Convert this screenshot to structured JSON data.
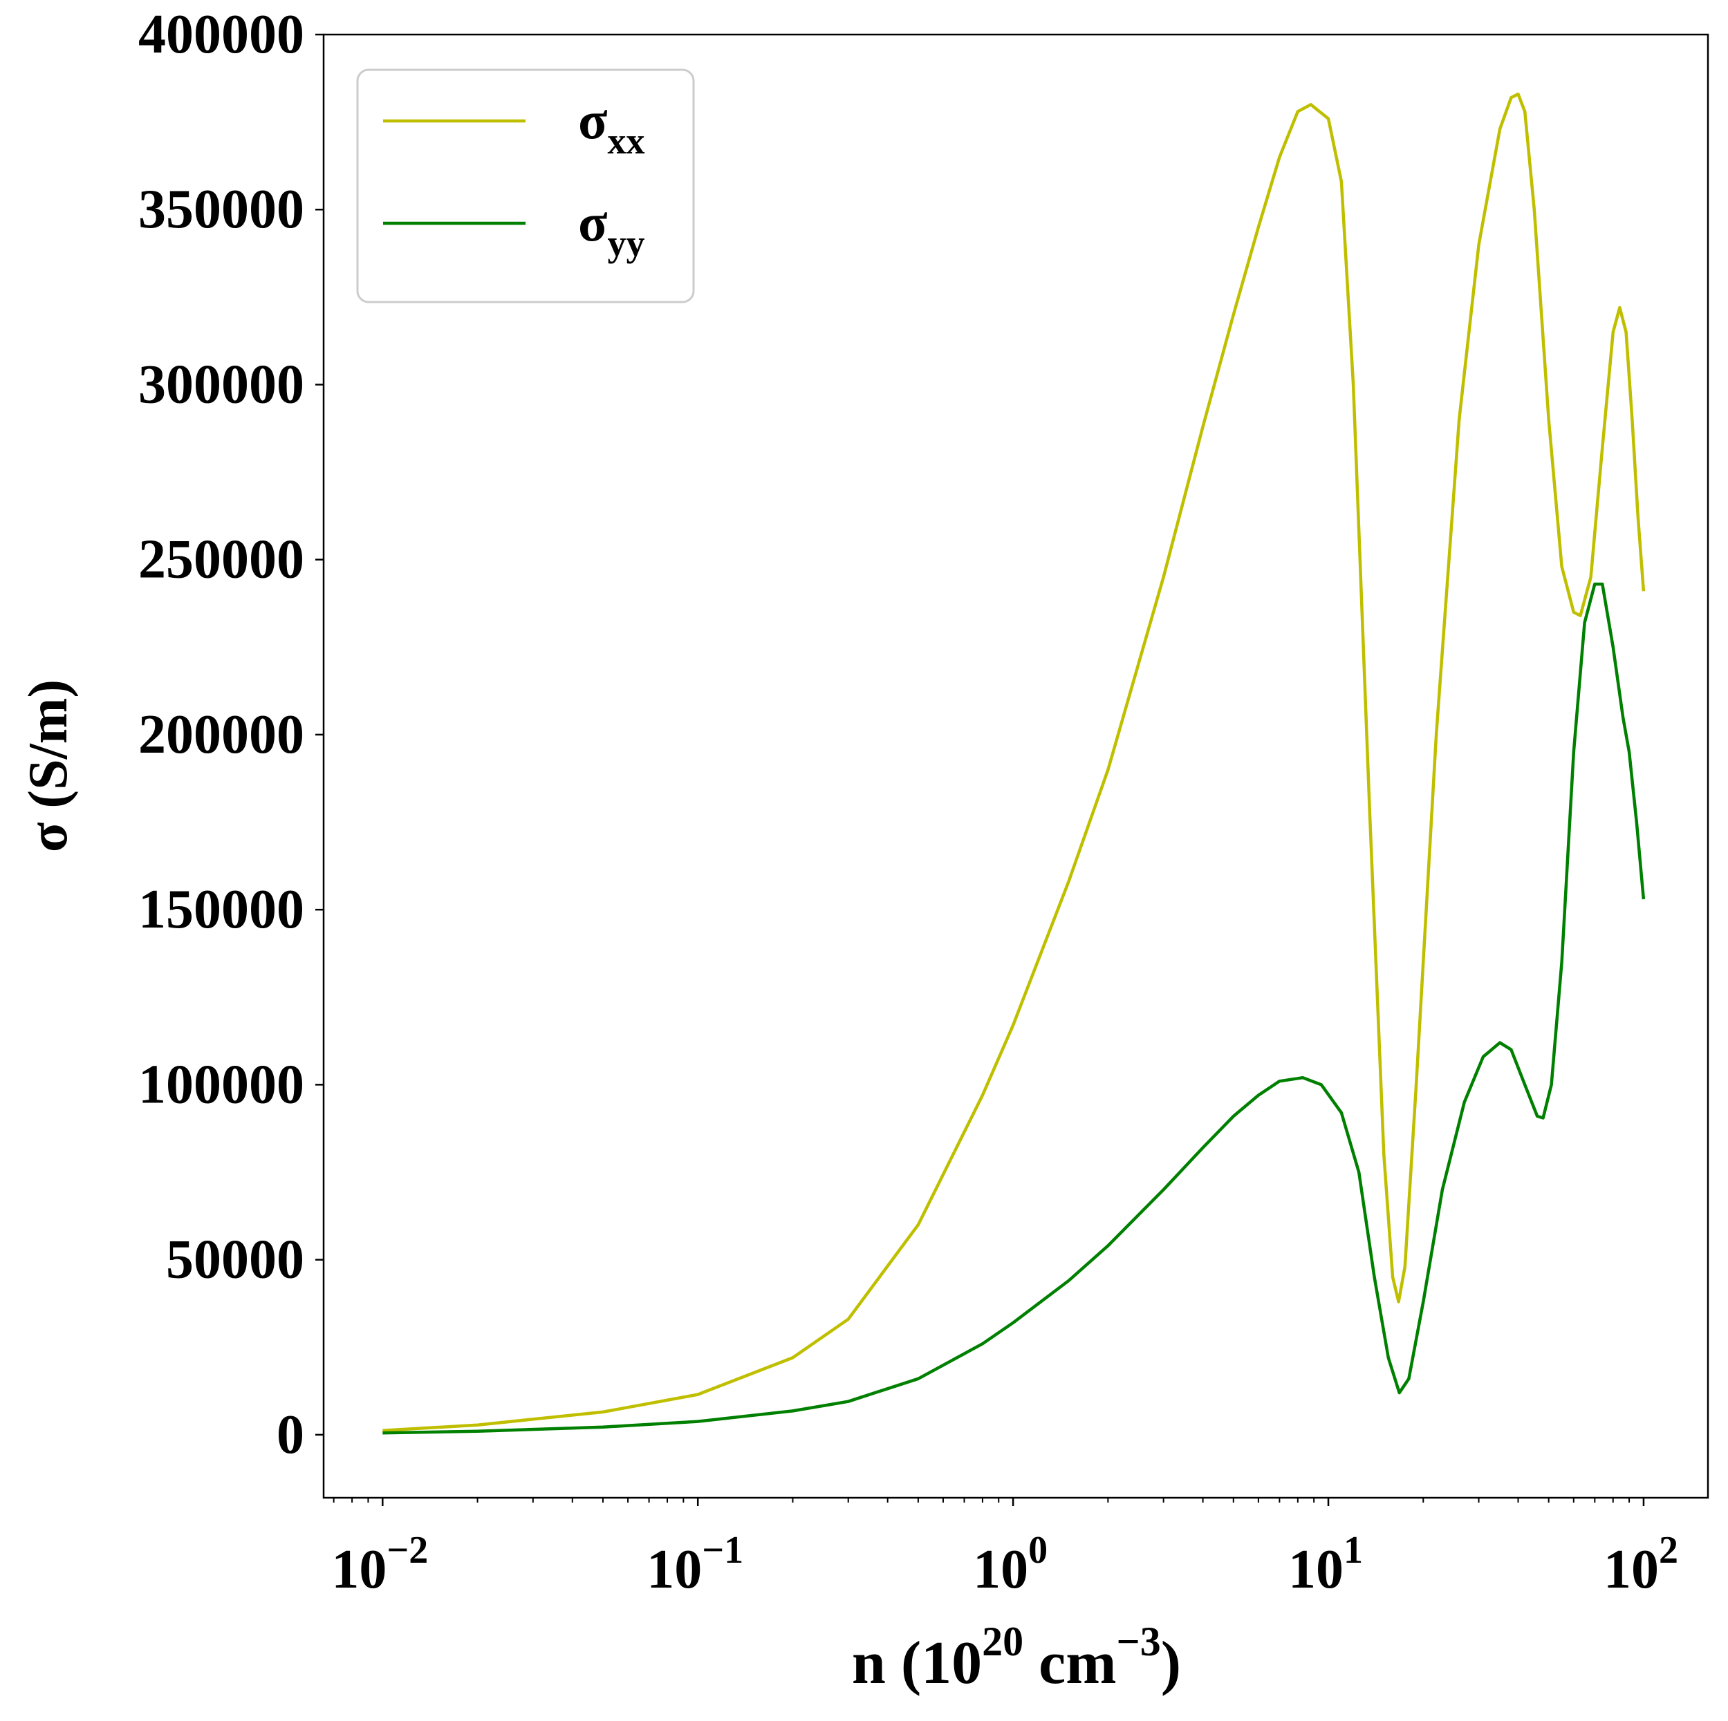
{
  "chart_data": {
    "type": "line",
    "title": "",
    "xlabel": {
      "base": "n (10",
      "sup1": "20",
      "mid": " cm",
      "sup2": "−3",
      "end": ")"
    },
    "ylabel": "σ (S/m)",
    "xscale": "log",
    "xlim": [
      0.0065,
      160
    ],
    "ylim": [
      -18000,
      400000
    ],
    "yticks": [
      0,
      50000,
      100000,
      150000,
      200000,
      250000,
      300000,
      350000,
      400000
    ],
    "xticks": [
      {
        "value": 0.01,
        "base": "10",
        "exp": "−2"
      },
      {
        "value": 0.1,
        "base": "10",
        "exp": "−1"
      },
      {
        "value": 1,
        "base": "10",
        "exp": "0"
      },
      {
        "value": 10,
        "base": "10",
        "exp": "1"
      },
      {
        "value": 100,
        "base": "10",
        "exp": "2"
      }
    ],
    "grid": false,
    "legend_position": "top-left",
    "series": [
      {
        "name": "σ",
        "subscript": "xx",
        "color": "#bfbf00",
        "points": [
          [
            0.01,
            1200
          ],
          [
            0.02,
            2800
          ],
          [
            0.05,
            6500
          ],
          [
            0.1,
            11500
          ],
          [
            0.2,
            22000
          ],
          [
            0.3,
            33000
          ],
          [
            0.5,
            60000
          ],
          [
            0.8,
            97000
          ],
          [
            1.0,
            117000
          ],
          [
            1.5,
            158000
          ],
          [
            2.0,
            190000
          ],
          [
            3.0,
            245000
          ],
          [
            4.0,
            288000
          ],
          [
            5.0,
            320000
          ],
          [
            6.0,
            345000
          ],
          [
            7.0,
            365000
          ],
          [
            8.0,
            378000
          ],
          [
            8.8,
            380000
          ],
          [
            10.0,
            376000
          ],
          [
            11.0,
            358000
          ],
          [
            12.0,
            300000
          ],
          [
            13.5,
            180000
          ],
          [
            15.0,
            80000
          ],
          [
            16.0,
            45000
          ],
          [
            16.7,
            38000
          ],
          [
            17.5,
            48000
          ],
          [
            19.0,
            100000
          ],
          [
            22.0,
            200000
          ],
          [
            26.0,
            290000
          ],
          [
            30.0,
            340000
          ],
          [
            35.0,
            373000
          ],
          [
            38.0,
            382000
          ],
          [
            40.0,
            383000
          ],
          [
            42.0,
            378000
          ],
          [
            45.0,
            350000
          ],
          [
            50.0,
            290000
          ],
          [
            55.0,
            248000
          ],
          [
            60.0,
            235000
          ],
          [
            63.0,
            234000
          ],
          [
            68.0,
            245000
          ],
          [
            74.0,
            282000
          ],
          [
            80.0,
            315000
          ],
          [
            84.0,
            322000
          ],
          [
            88.0,
            315000
          ],
          [
            92.0,
            290000
          ],
          [
            96.0,
            262000
          ],
          [
            100.0,
            241000
          ]
        ]
      },
      {
        "name": "σ",
        "subscript": "yy",
        "color": "#008000",
        "points": [
          [
            0.01,
            500
          ],
          [
            0.02,
            1000
          ],
          [
            0.05,
            2200
          ],
          [
            0.1,
            3800
          ],
          [
            0.2,
            6800
          ],
          [
            0.3,
            9500
          ],
          [
            0.5,
            16000
          ],
          [
            0.8,
            26000
          ],
          [
            1.0,
            32000
          ],
          [
            1.5,
            44000
          ],
          [
            2.0,
            54000
          ],
          [
            3.0,
            70000
          ],
          [
            4.0,
            82000
          ],
          [
            5.0,
            91000
          ],
          [
            6.0,
            97000
          ],
          [
            7.0,
            101000
          ],
          [
            8.3,
            102000
          ],
          [
            9.5,
            100000
          ],
          [
            11.0,
            92000
          ],
          [
            12.5,
            75000
          ],
          [
            14.0,
            45000
          ],
          [
            15.5,
            22000
          ],
          [
            16.8,
            12000
          ],
          [
            18.0,
            16000
          ],
          [
            20.0,
            38000
          ],
          [
            23.0,
            70000
          ],
          [
            27.0,
            95000
          ],
          [
            31.0,
            108000
          ],
          [
            35.0,
            112000
          ],
          [
            38.0,
            110000
          ],
          [
            42.0,
            100000
          ],
          [
            46.0,
            91000
          ],
          [
            48.0,
            90500
          ],
          [
            51.0,
            100000
          ],
          [
            55.0,
            135000
          ],
          [
            60.0,
            195000
          ],
          [
            65.0,
            232000
          ],
          [
            70.0,
            243000
          ],
          [
            74.0,
            243000
          ],
          [
            80.0,
            225000
          ],
          [
            86.0,
            205000
          ],
          [
            90.0,
            195000
          ],
          [
            95.0,
            175000
          ],
          [
            100.0,
            153000
          ]
        ]
      }
    ]
  }
}
